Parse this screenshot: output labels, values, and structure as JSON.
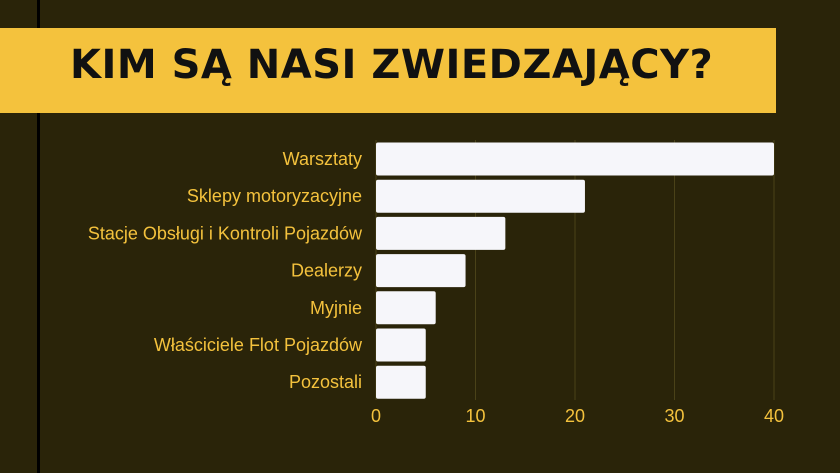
{
  "title": "KIM SĄ NASI ZWIEDZAJĄCY?",
  "colors": {
    "background": "#2a2409",
    "accent": "#f4c23d",
    "bar": "#f6f6fa",
    "title_text": "#111111"
  },
  "chart_data": {
    "type": "bar",
    "orientation": "horizontal",
    "categories": [
      "Warsztaty",
      "Sklepy motoryzacyjne",
      "Stacje Obsługi i Kontroli Pojazdów",
      "Dealerzy",
      "Myjnie",
      "Właściciele Flot Pojazdów",
      "Pozostali"
    ],
    "values": [
      40,
      21,
      13,
      9,
      6,
      5,
      5
    ],
    "xlim": [
      0,
      40
    ],
    "xticks": [
      "0",
      "10",
      "20",
      "30",
      "40"
    ],
    "grid": true,
    "legend": "none"
  }
}
